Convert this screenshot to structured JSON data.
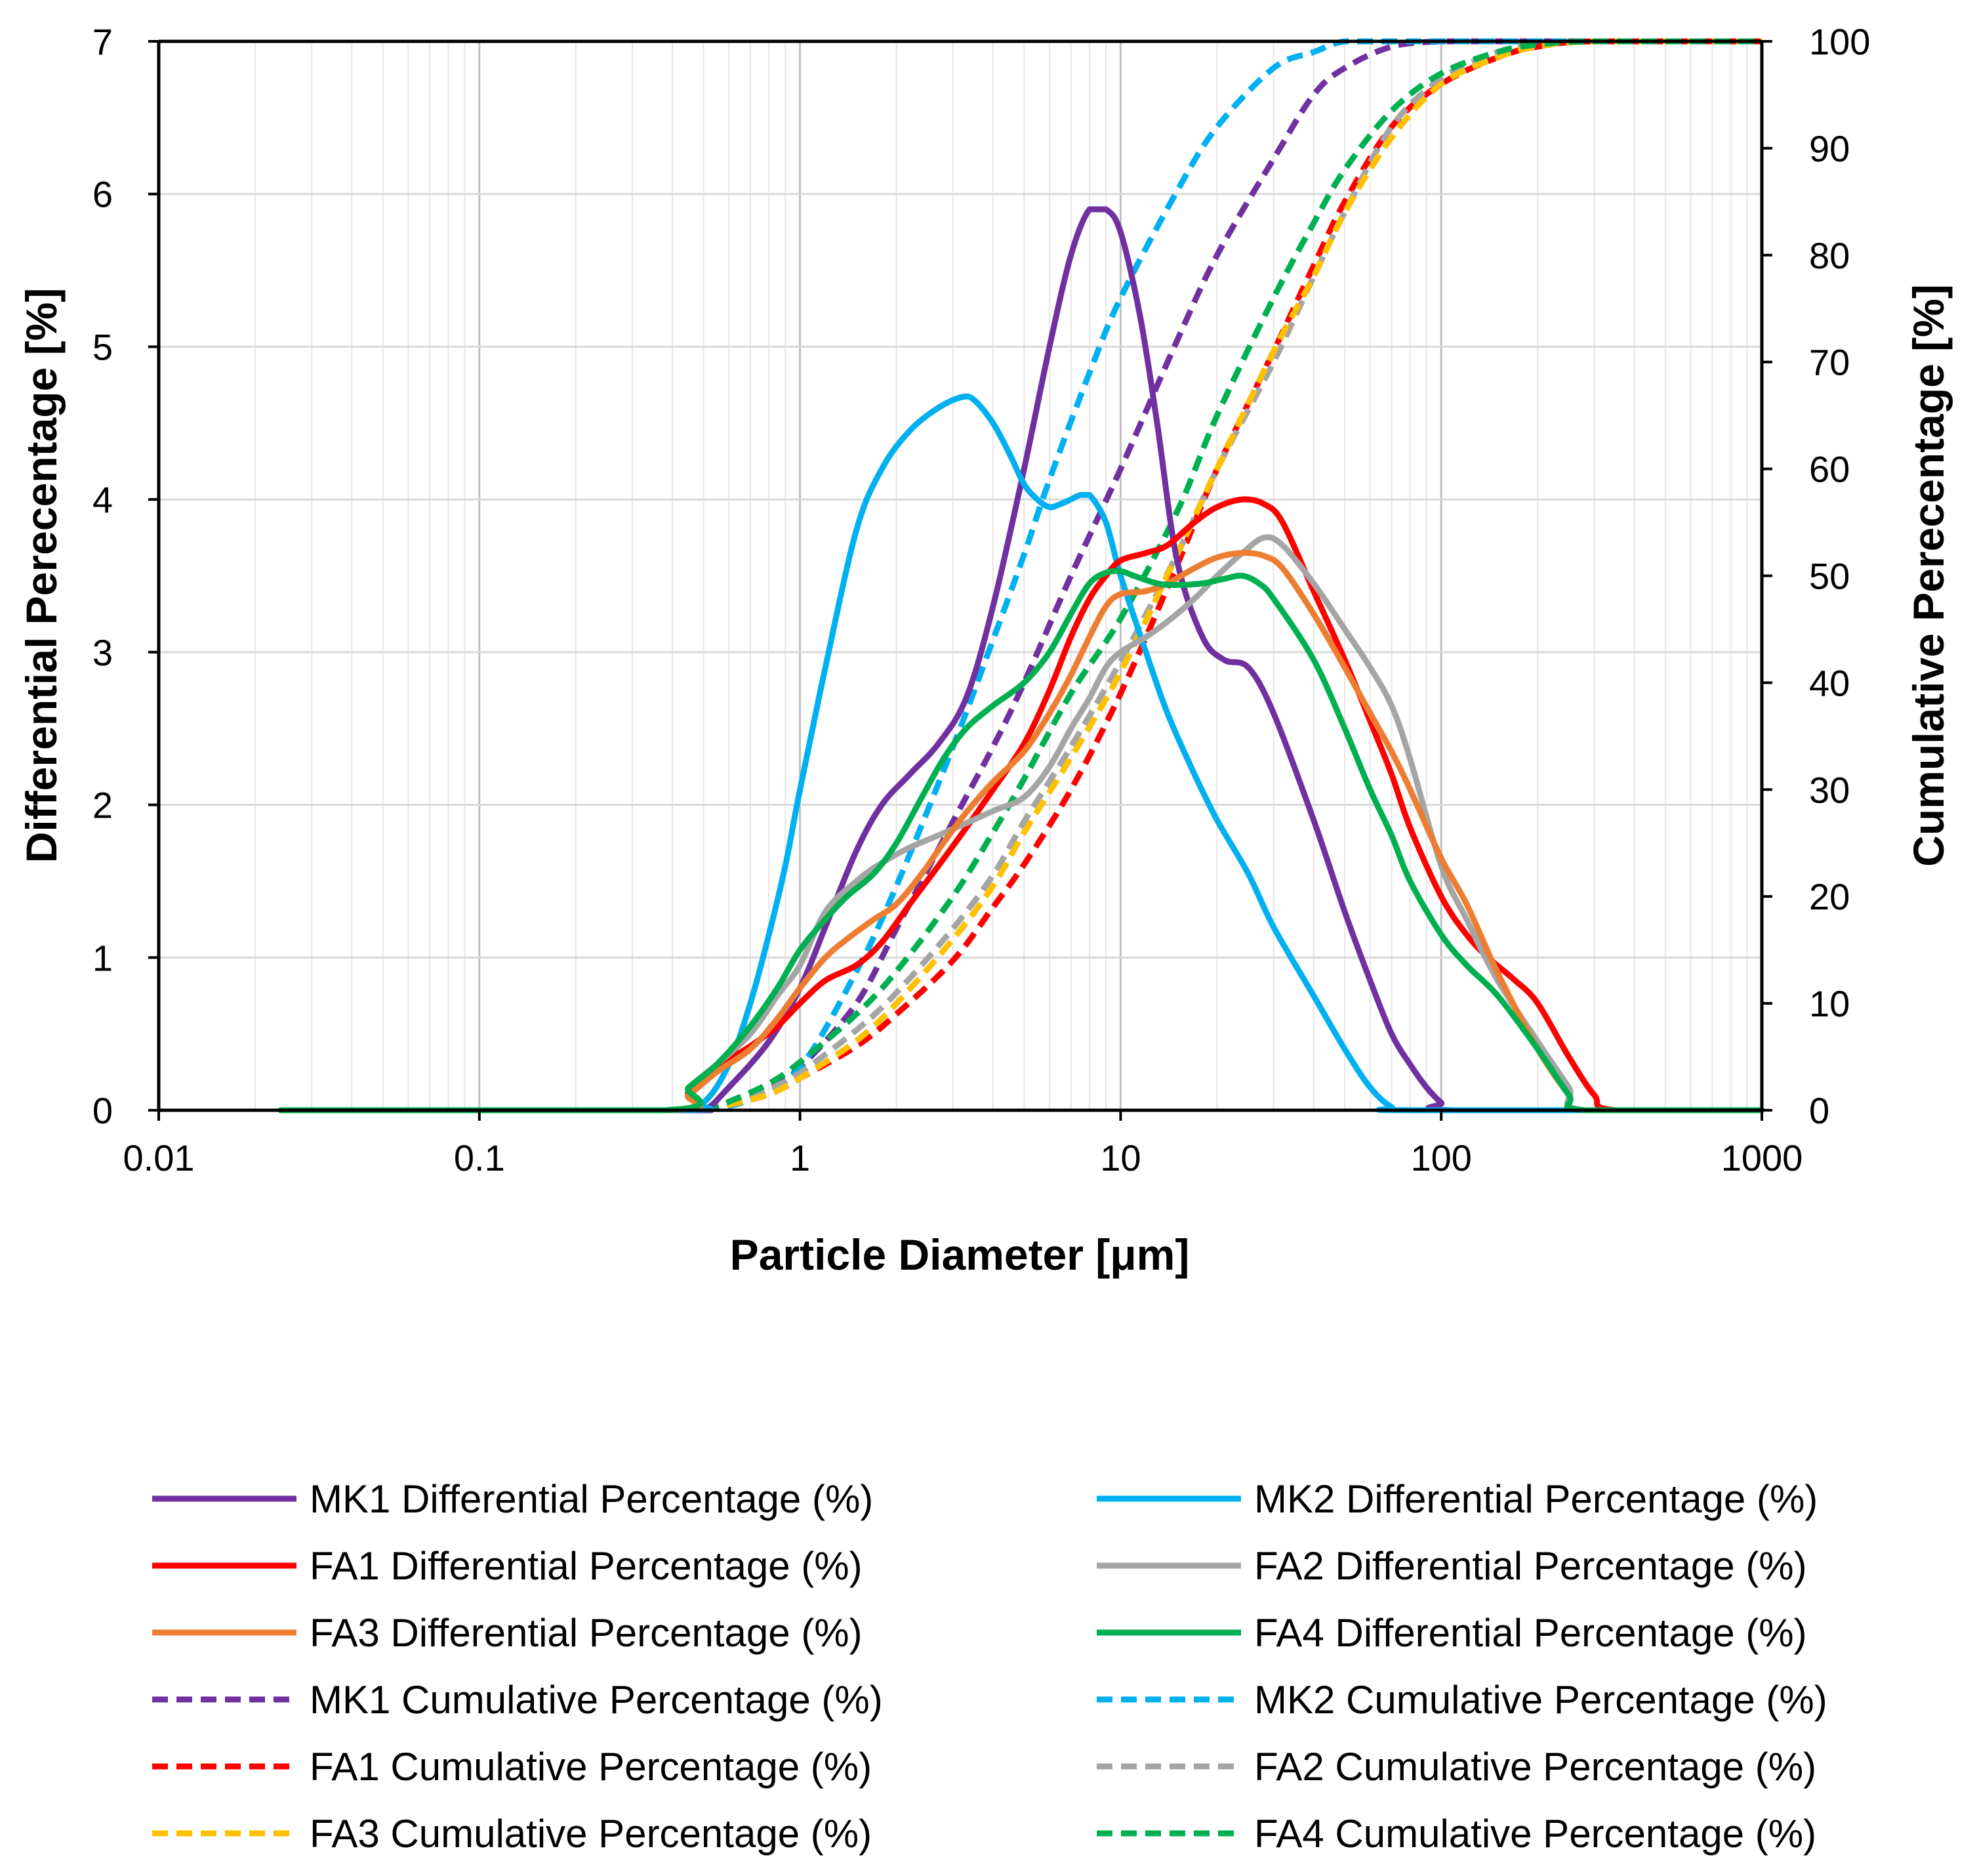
{
  "chart_data": {
    "type": "line",
    "title": "",
    "xlabel": "Particle Diameter [μm]",
    "ylabel_left": "Differential Perecentage [%]",
    "ylabel_right": "Cumulative Perecentage [%]",
    "x_scale": "log",
    "xlim": [
      0.01,
      1000
    ],
    "ylim_left": [
      0,
      7
    ],
    "ylim_right": [
      0,
      100
    ],
    "x_ticks": [
      0.01,
      0.1,
      1,
      10,
      100,
      1000
    ],
    "x_tick_labels": [
      "0.01",
      "0.1",
      "1",
      "10",
      "100",
      "1000"
    ],
    "y_left_ticks": [
      "0",
      "1",
      "2",
      "3",
      "4",
      "5",
      "6",
      "7"
    ],
    "y_right_ticks": [
      "0",
      "10",
      "20",
      "30",
      "40",
      "50",
      "60",
      "70",
      "80",
      "90",
      "100"
    ],
    "grid": true,
    "legend_position": "bottom, two columns",
    "series": [
      {
        "name": "MK1 Differential Percentage (%)",
        "axis": "left",
        "style": "solid",
        "color": "#7030A0",
        "x": [
          0.024,
          0.4,
          0.5,
          0.6,
          0.8,
          1.0,
          1.2,
          1.5,
          1.8,
          2.2,
          2.7,
          3.3,
          4.0,
          5.0,
          6.0,
          7.0,
          8.0,
          9.0,
          10.0,
          11.5,
          13.0,
          15.0,
          18.0,
          21.0,
          25.0,
          30.0,
          40.0,
          50.0,
          60.0,
          70.0,
          80.0,
          90.0,
          100.0,
          110.0,
          1000
        ],
        "y": [
          0,
          0,
          0,
          0.15,
          0.45,
          0.8,
          1.2,
          1.7,
          2.0,
          2.2,
          2.4,
          2.7,
          3.3,
          4.2,
          5.0,
          5.6,
          5.9,
          5.9,
          5.75,
          5.2,
          4.5,
          3.6,
          3.1,
          2.95,
          2.9,
          2.6,
          1.9,
          1.3,
          0.85,
          0.5,
          0.3,
          0.15,
          0.05,
          0,
          0
        ]
      },
      {
        "name": "MK2 Differential Percentage (%)",
        "axis": "left",
        "style": "solid",
        "color": "#00B0F0",
        "x": [
          0.024,
          0.4,
          0.5,
          0.6,
          0.7,
          0.8,
          0.9,
          1.0,
          1.2,
          1.5,
          1.8,
          2.2,
          2.7,
          3.2,
          3.5,
          4.0,
          4.5,
          5.0,
          5.5,
          6.0,
          6.5,
          7.0,
          7.5,
          8.0,
          9.0,
          10.0,
          12.0,
          14.0,
          17.0,
          20.0,
          25.0,
          30.0,
          40.0,
          50.0,
          60.0,
          70.0,
          80.0,
          1000
        ],
        "y": [
          0,
          0,
          0.05,
          0.3,
          0.7,
          1.15,
          1.6,
          2.1,
          2.9,
          3.8,
          4.2,
          4.45,
          4.6,
          4.67,
          4.65,
          4.5,
          4.3,
          4.1,
          4.0,
          3.95,
          3.97,
          4.0,
          4.03,
          4.03,
          3.85,
          3.5,
          3.0,
          2.6,
          2.2,
          1.9,
          1.55,
          1.2,
          0.75,
          0.4,
          0.15,
          0.02,
          0,
          0
        ]
      },
      {
        "name": "FA1 Differential Percentage (%)",
        "axis": "left",
        "style": "solid",
        "color": "#FF0000",
        "x": [
          0.024,
          0.38,
          0.45,
          0.55,
          0.7,
          0.85,
          1.0,
          1.2,
          1.5,
          1.8,
          2.2,
          2.7,
          3.3,
          4.0,
          5.0,
          6.0,
          7.0,
          8.0,
          9.0,
          10.0,
          12.0,
          14.0,
          17.0,
          20.0,
          24.0,
          28.0,
          32.0,
          40.0,
          50.0,
          60.0,
          70.0,
          80.0,
          100.0,
          120.0,
          140.0,
          170.0,
          200.0,
          250.0,
          300.0,
          350.0,
          1000
        ],
        "y": [
          0,
          0,
          0.12,
          0.28,
          0.42,
          0.55,
          0.7,
          0.85,
          0.95,
          1.1,
          1.35,
          1.6,
          1.85,
          2.1,
          2.4,
          2.75,
          3.1,
          3.35,
          3.5,
          3.6,
          3.65,
          3.7,
          3.85,
          3.95,
          4.0,
          3.97,
          3.85,
          3.4,
          2.95,
          2.55,
          2.2,
          1.85,
          1.4,
          1.15,
          1.0,
          0.85,
          0.7,
          0.35,
          0.1,
          0,
          0
        ]
      },
      {
        "name": "FA2 Differential Percentage (%)",
        "axis": "left",
        "style": "solid",
        "color": "#A5A5A5",
        "x": [
          0.024,
          0.38,
          0.45,
          0.55,
          0.7,
          0.85,
          1.0,
          1.2,
          1.5,
          1.8,
          2.2,
          2.7,
          3.3,
          4.0,
          5.0,
          6.0,
          7.0,
          8.0,
          9.0,
          10.0,
          12.0,
          14.0,
          17.0,
          20.0,
          24.0,
          28.0,
          32.0,
          40.0,
          50.0,
          60.0,
          70.0,
          80.0,
          100.0,
          120.0,
          150.0,
          200.0,
          250.0,
          280.0,
          1000
        ],
        "y": [
          0,
          0,
          0.15,
          0.3,
          0.5,
          0.75,
          0.95,
          1.3,
          1.5,
          1.62,
          1.72,
          1.8,
          1.88,
          1.96,
          2.05,
          2.25,
          2.5,
          2.7,
          2.9,
          3.0,
          3.1,
          3.2,
          3.35,
          3.5,
          3.65,
          3.75,
          3.7,
          3.45,
          3.15,
          2.9,
          2.65,
          2.3,
          1.6,
          1.25,
          0.85,
          0.45,
          0.15,
          0,
          0
        ]
      },
      {
        "name": "FA3 Differential Percentage (%)",
        "axis": "left",
        "style": "solid",
        "color": "#ED7D31",
        "x": [
          0.024,
          0.38,
          0.45,
          0.55,
          0.7,
          0.85,
          1.0,
          1.2,
          1.4,
          1.7,
          2.0,
          2.4,
          2.8,
          3.3,
          4.0,
          5.0,
          6.0,
          7.0,
          8.0,
          9.0,
          10.0,
          12.0,
          14.0,
          17.0,
          20.0,
          24.0,
          28.0,
          32.0,
          40.0,
          50.0,
          60.0,
          70.0,
          80.0,
          100.0,
          120.0,
          150.0,
          200.0,
          250.0,
          280.0,
          1000
        ],
        "y": [
          0,
          0,
          0.1,
          0.25,
          0.4,
          0.6,
          0.8,
          1.0,
          1.12,
          1.25,
          1.35,
          1.55,
          1.75,
          1.95,
          2.15,
          2.35,
          2.6,
          2.85,
          3.1,
          3.3,
          3.38,
          3.4,
          3.45,
          3.55,
          3.62,
          3.65,
          3.63,
          3.55,
          3.25,
          2.9,
          2.6,
          2.35,
          2.1,
          1.65,
          1.35,
          0.9,
          0.4,
          0.1,
          0,
          0
        ]
      },
      {
        "name": "FA4 Differential Percentage (%)",
        "axis": "left",
        "style": "solid",
        "color": "#00B050",
        "x": [
          0.024,
          0.38,
          0.45,
          0.55,
          0.7,
          0.85,
          1.0,
          1.2,
          1.4,
          1.7,
          2.0,
          2.4,
          2.8,
          3.3,
          4.0,
          5.0,
          6.0,
          7.0,
          8.0,
          9.0,
          10.0,
          11.0,
          13.0,
          15.0,
          18.0,
          21.0,
          24.0,
          27.0,
          30.0,
          40.0,
          50.0,
          60.0,
          70.0,
          80.0,
          100.0,
          120.0,
          150.0,
          200.0,
          250.0,
          280.0,
          1000
        ],
        "y": [
          0,
          0,
          0.15,
          0.3,
          0.55,
          0.8,
          1.05,
          1.25,
          1.4,
          1.55,
          1.75,
          2.05,
          2.3,
          2.5,
          2.65,
          2.8,
          3.0,
          3.25,
          3.45,
          3.52,
          3.53,
          3.5,
          3.45,
          3.44,
          3.45,
          3.48,
          3.5,
          3.45,
          3.35,
          2.95,
          2.5,
          2.1,
          1.8,
          1.5,
          1.15,
          0.95,
          0.75,
          0.4,
          0.1,
          0,
          0
        ]
      },
      {
        "name": "MK1 Cumulative Percentage (%)",
        "axis": "right",
        "style": "dashed",
        "color": "#7030A0",
        "x": [
          0.5,
          0.6,
          0.8,
          1.0,
          1.5,
          2.0,
          3.0,
          4.0,
          5.0,
          7.0,
          10.0,
          15.0,
          20.0,
          30.0,
          40.0,
          50.0,
          70.0,
          100.0,
          150.0,
          1000
        ],
        "y": [
          0,
          0.5,
          2,
          4,
          10,
          17,
          27,
          34,
          40,
          50,
          60,
          72,
          80,
          89,
          95,
          97.5,
          99.5,
          100,
          100,
          100
        ]
      },
      {
        "name": "MK2 Cumulative Percentage (%)",
        "axis": "right",
        "style": "dashed",
        "color": "#00B0F0",
        "x": [
          0.5,
          0.7,
          1.0,
          1.5,
          2.0,
          3.0,
          4.0,
          5.0,
          6.0,
          8.0,
          10.0,
          15.0,
          20.0,
          30.0,
          40.0,
          50.0,
          70.0,
          100.0,
          1000
        ],
        "y": [
          0,
          1,
          4,
          13,
          21,
          34,
          44,
          52,
          59,
          69,
          76,
          86,
          92,
          97.5,
          99,
          100,
          100,
          100,
          100
        ]
      },
      {
        "name": "FA1 Cumulative Percentage (%)",
        "axis": "right",
        "style": "dashed",
        "color": "#FF0000",
        "x": [
          0.5,
          0.6,
          0.8,
          1.0,
          1.5,
          2.0,
          3.0,
          4.0,
          5.0,
          7.0,
          10.0,
          15.0,
          20.0,
          30.0,
          40.0,
          50.0,
          70.0,
          100.0,
          150.0,
          200.0,
          300.0,
          1000
        ],
        "y": [
          0,
          0.5,
          1.5,
          3,
          6,
          9,
          14,
          19,
          23,
          30,
          39,
          51,
          60,
          71,
          79,
          85,
          92,
          96,
          98.5,
          99.5,
          100,
          100
        ]
      },
      {
        "name": "FA2 Cumulative Percentage (%)",
        "axis": "right",
        "style": "dashed",
        "color": "#A5A5A5",
        "x": [
          0.5,
          0.6,
          0.8,
          1.0,
          1.5,
          2.0,
          3.0,
          4.0,
          5.0,
          7.0,
          10.0,
          15.0,
          20.0,
          30.0,
          40.0,
          50.0,
          70.0,
          100.0,
          150.0,
          200.0,
          300.0,
          1000
        ],
        "y": [
          0,
          0.5,
          2,
          3.5,
          7.5,
          11,
          17,
          22,
          27,
          34,
          42,
          52,
          60,
          70,
          78,
          84,
          92,
          96.5,
          99,
          99.7,
          100,
          100
        ]
      },
      {
        "name": "FA3 Cumulative Percentage (%)",
        "axis": "right",
        "style": "dashed",
        "color": "#FFC000",
        "x": [
          0.5,
          0.6,
          0.8,
          1.0,
          1.5,
          2.0,
          3.0,
          4.0,
          5.0,
          7.0,
          10.0,
          15.0,
          20.0,
          30.0,
          40.0,
          50.0,
          70.0,
          100.0,
          150.0,
          200.0,
          300.0,
          1000
        ],
        "y": [
          0,
          0.5,
          1.5,
          3,
          6.5,
          10,
          16,
          21,
          26,
          33,
          41,
          52,
          60,
          71,
          78,
          84,
          91,
          96,
          98.5,
          99.5,
          100,
          100
        ]
      },
      {
        "name": "FA4 Cumulative Percentage (%)",
        "axis": "right",
        "style": "dashed",
        "color": "#00B050",
        "x": [
          0.5,
          0.6,
          0.8,
          1.0,
          1.5,
          2.0,
          3.0,
          4.0,
          5.0,
          7.0,
          10.0,
          15.0,
          20.0,
          30.0,
          40.0,
          50.0,
          70.0,
          100.0,
          150.0,
          200.0,
          300.0,
          1000
        ],
        "y": [
          0,
          0.8,
          2.5,
          4.5,
          9,
          13,
          20,
          26,
          31,
          39,
          46,
          56,
          65,
          76,
          83,
          88,
          93.5,
          97,
          99,
          99.7,
          100,
          100
        ]
      }
    ]
  }
}
